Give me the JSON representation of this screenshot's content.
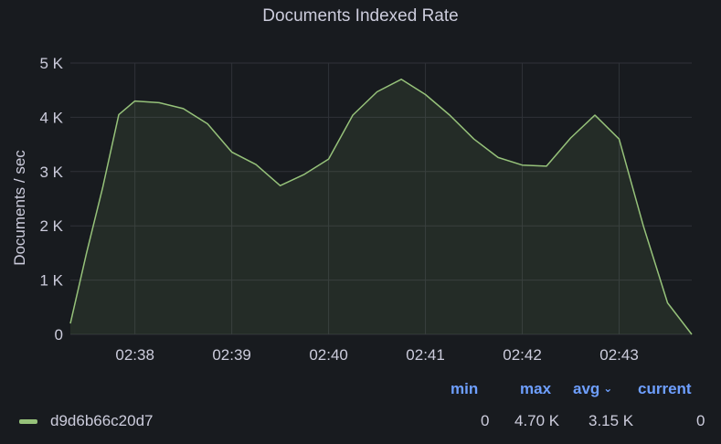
{
  "panel": {
    "title": "Documents Indexed Rate"
  },
  "chart_data": {
    "type": "area",
    "title": "Documents Indexed Rate",
    "ylabel": "Documents / sec",
    "xlabel": "",
    "ylim": [
      0,
      5000
    ],
    "yticks": [
      0,
      1000,
      2000,
      3000,
      4000,
      5000
    ],
    "ytick_labels": [
      "0",
      "1 K",
      "2 K",
      "3 K",
      "4 K",
      "5 K"
    ],
    "xticks": [
      "02:38",
      "02:39",
      "02:40",
      "02:41",
      "02:42",
      "02:43"
    ],
    "grid": true,
    "series": [
      {
        "name": "d9d6b66c20d7",
        "color": "#96c27a",
        "x": [
          "02:37:20",
          "02:37:30",
          "02:37:40",
          "02:37:50",
          "02:38:00",
          "02:38:15",
          "02:38:30",
          "02:38:45",
          "02:39:00",
          "02:39:15",
          "02:39:30",
          "02:39:45",
          "02:40:00",
          "02:40:15",
          "02:40:30",
          "02:40:45",
          "02:41:00",
          "02:41:15",
          "02:41:30",
          "02:41:45",
          "02:42:00",
          "02:42:15",
          "02:42:30",
          "02:42:45",
          "02:43:00",
          "02:43:15",
          "02:43:30",
          "02:43:45"
        ],
        "values": [
          200,
          1500,
          2700,
          4050,
          4300,
          4270,
          4160,
          3880,
          3360,
          3130,
          2740,
          2950,
          3230,
          4040,
          4470,
          4700,
          4420,
          4040,
          3600,
          3260,
          3120,
          3100,
          3620,
          4040,
          3600,
          2000,
          580,
          0
        ]
      }
    ]
  },
  "legend": {
    "headers": {
      "min": "min",
      "max": "max",
      "avg": "avg",
      "current": "current"
    },
    "rows": [
      {
        "name": "d9d6b66c20d7",
        "color": "#96c27a",
        "min": "0",
        "max": "4.70 K",
        "avg": "3.15 K",
        "current": "0"
      }
    ]
  }
}
